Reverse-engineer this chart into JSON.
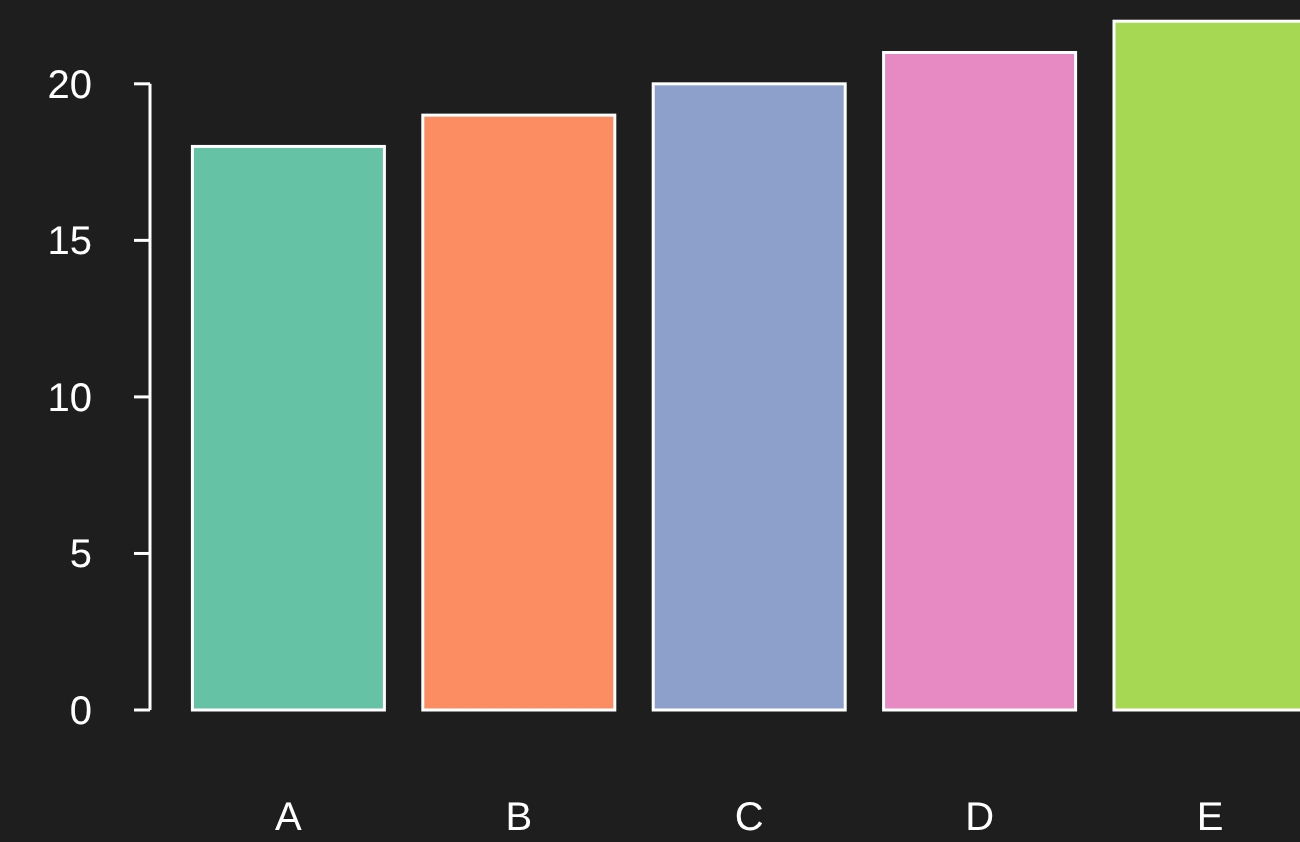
{
  "chart_data": {
    "type": "bar",
    "categories": [
      "A",
      "B",
      "C",
      "D",
      "E"
    ],
    "values": [
      18,
      19,
      20,
      21,
      22
    ],
    "colors": [
      "#66c2a5",
      "#fc8d62",
      "#8da0cb",
      "#e78ac3",
      "#a6d854"
    ],
    "ylim": [
      0,
      22
    ],
    "yticks": [
      0,
      5,
      10,
      15,
      20
    ]
  }
}
